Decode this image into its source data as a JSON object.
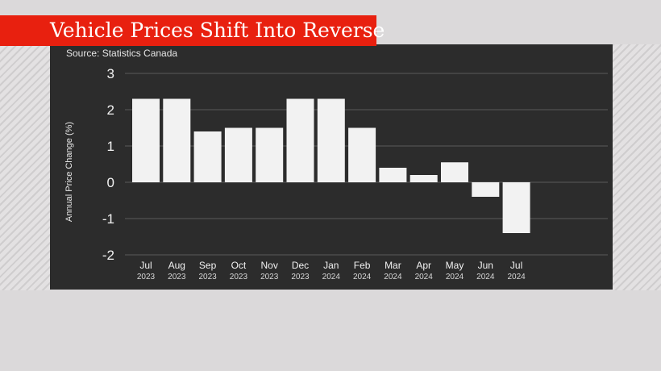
{
  "header": {
    "title": "Vehicle Prices Shift Into Reverse",
    "source": "Source: Statistics Canada"
  },
  "colors": {
    "banner": "#e8200f",
    "panel": "#2c2c2c",
    "bar": "#f2f2f2",
    "grid": "#5a5a5a",
    "background": "#dbd9da"
  },
  "chart_data": {
    "type": "bar",
    "categories": [
      [
        "Jul",
        "2023"
      ],
      [
        "Aug",
        "2023"
      ],
      [
        "Sep",
        "2023"
      ],
      [
        "Oct",
        "2023"
      ],
      [
        "Nov",
        "2023"
      ],
      [
        "Dec",
        "2023"
      ],
      [
        "Jan",
        "2024"
      ],
      [
        "Feb",
        "2024"
      ],
      [
        "Mar",
        "2024"
      ],
      [
        "Apr",
        "2024"
      ],
      [
        "May",
        "2024"
      ],
      [
        "Jun",
        "2024"
      ],
      [
        "Jul",
        "2024"
      ]
    ],
    "values": [
      2.3,
      2.3,
      1.4,
      1.5,
      1.5,
      2.3,
      2.3,
      1.5,
      0.4,
      0.2,
      0.55,
      -0.4,
      -1.4
    ],
    "ylabel": "Annual Price Change (%)",
    "ylim": [
      -2,
      3
    ],
    "yticks": [
      3,
      2,
      1,
      0,
      -1,
      -2
    ],
    "grid": true,
    "legend": false
  }
}
